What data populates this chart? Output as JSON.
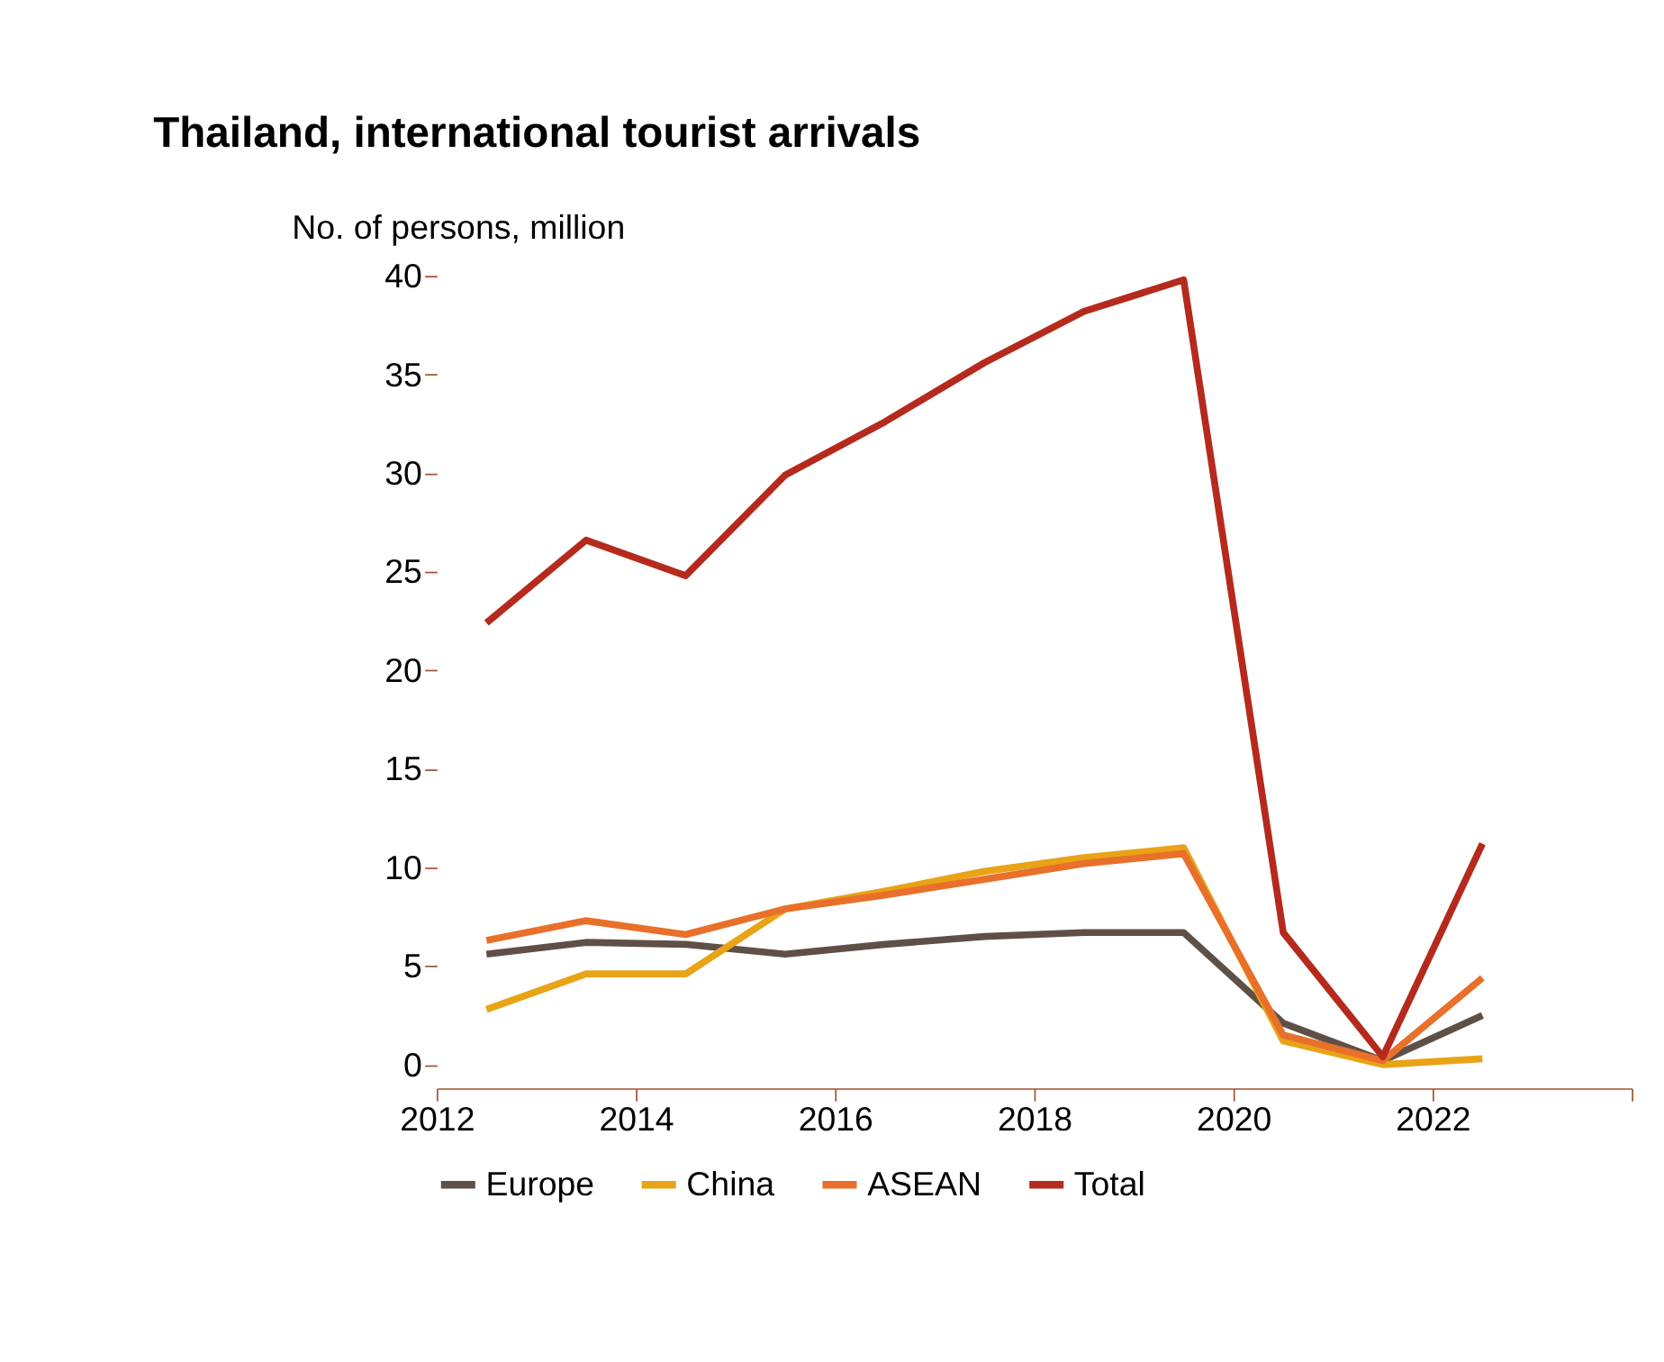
{
  "chart_data": {
    "type": "line",
    "title": "Thailand, international tourist arrivals",
    "ylabel": "No. of persons, million",
    "x": [
      2012.5,
      2013.5,
      2014.5,
      2015.5,
      2016.5,
      2017.5,
      2018.5,
      2019.5,
      2020.5,
      2021.5,
      2022.5
    ],
    "series": [
      {
        "name": "Europe",
        "color": "#5e5046",
        "values": [
          5.6,
          6.2,
          6.1,
          5.6,
          6.1,
          6.5,
          6.7,
          6.7,
          2.1,
          0.2,
          2.5
        ]
      },
      {
        "name": "China",
        "color": "#e8a317",
        "values": [
          2.8,
          4.6,
          4.6,
          7.9,
          8.8,
          9.8,
          10.5,
          11.0,
          1.2,
          0.0,
          0.3
        ]
      },
      {
        "name": "ASEAN",
        "color": "#e8702a",
        "values": [
          6.3,
          7.3,
          6.6,
          7.9,
          8.6,
          9.4,
          10.2,
          10.7,
          1.5,
          0.2,
          4.4
        ]
      },
      {
        "name": "Total",
        "color": "#b52a1c",
        "values": [
          22.4,
          26.6,
          24.8,
          29.9,
          32.6,
          35.6,
          38.2,
          39.8,
          6.7,
          0.4,
          11.2
        ]
      }
    ],
    "xlim": [
      2012,
      2024
    ],
    "xticks": [
      2012,
      2014,
      2016,
      2018,
      2020,
      2022,
      {
        "value": 2024,
        "label": null
      }
    ],
    "ylim": [
      -1.2,
      40
    ],
    "yticks": [
      0,
      5,
      10,
      15,
      20,
      25,
      30,
      35,
      40
    ],
    "grid": false,
    "legend": "bottom",
    "marker": "none",
    "line_style": "solid"
  }
}
